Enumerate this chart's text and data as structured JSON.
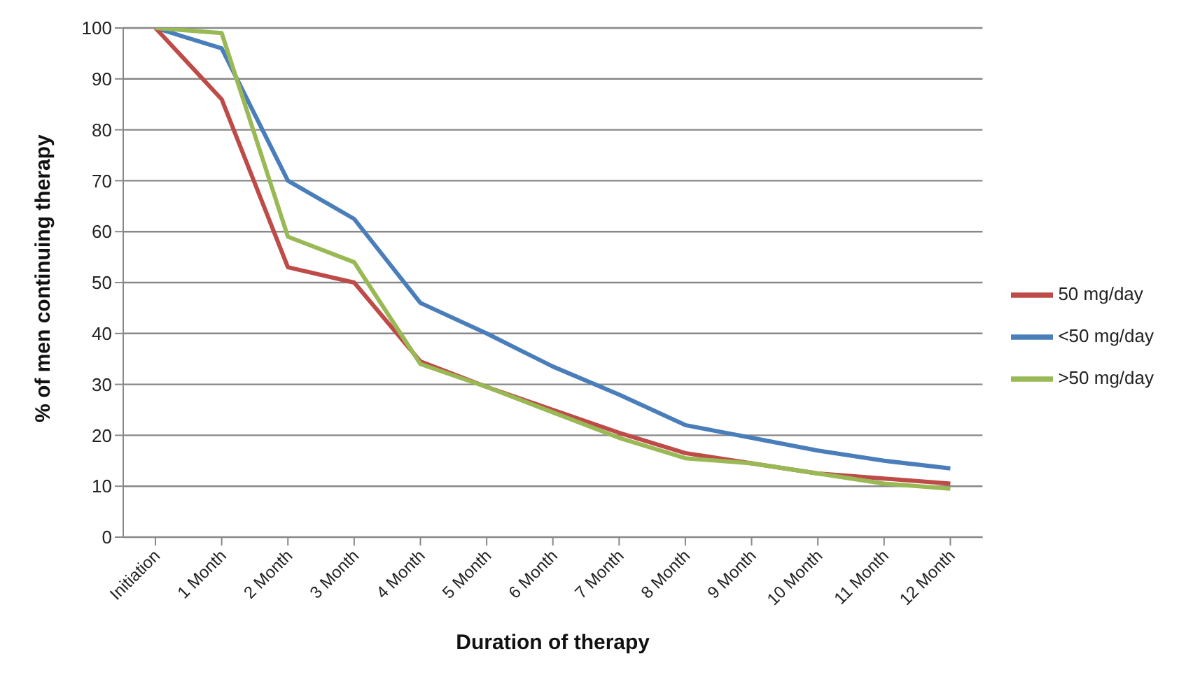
{
  "chart_data": {
    "type": "line",
    "xlabel": "Duration of therapy",
    "ylabel": "% of men continuing therapy",
    "categories": [
      "Initiation",
      "1 Month",
      "2 Month",
      "3 Month",
      "4 Month",
      "5 Month",
      "6 Month",
      "7 Month",
      "8 Month",
      "9 Month",
      "10 Month",
      "11 Month",
      "12 Month"
    ],
    "series": [
      {
        "name": "<50 mg/day",
        "color": "#4a7ebb",
        "values": [
          100,
          96,
          70,
          62.5,
          46,
          40,
          33.5,
          28,
          22,
          19.5,
          17,
          15,
          13.5
        ]
      },
      {
        "name": "50 mg/day",
        "color": "#be4b48",
        "values": [
          100,
          86,
          53,
          50,
          34.5,
          29.5,
          25,
          20.5,
          16.5,
          14.5,
          12.5,
          11.5,
          10.5
        ]
      },
      {
        "name": ">50 mg/day",
        "color": "#98b954",
        "values": [
          100,
          99,
          59,
          54,
          34,
          29.5,
          24.5,
          19.5,
          15.5,
          14.5,
          12.5,
          10.5,
          9.5
        ]
      }
    ],
    "ylim": [
      0,
      100
    ],
    "yticks": [
      0,
      10,
      20,
      30,
      40,
      50,
      60,
      70,
      80,
      90,
      100
    ],
    "grid": "y",
    "legend": "right",
    "marker": "none",
    "line_style": "solid"
  }
}
